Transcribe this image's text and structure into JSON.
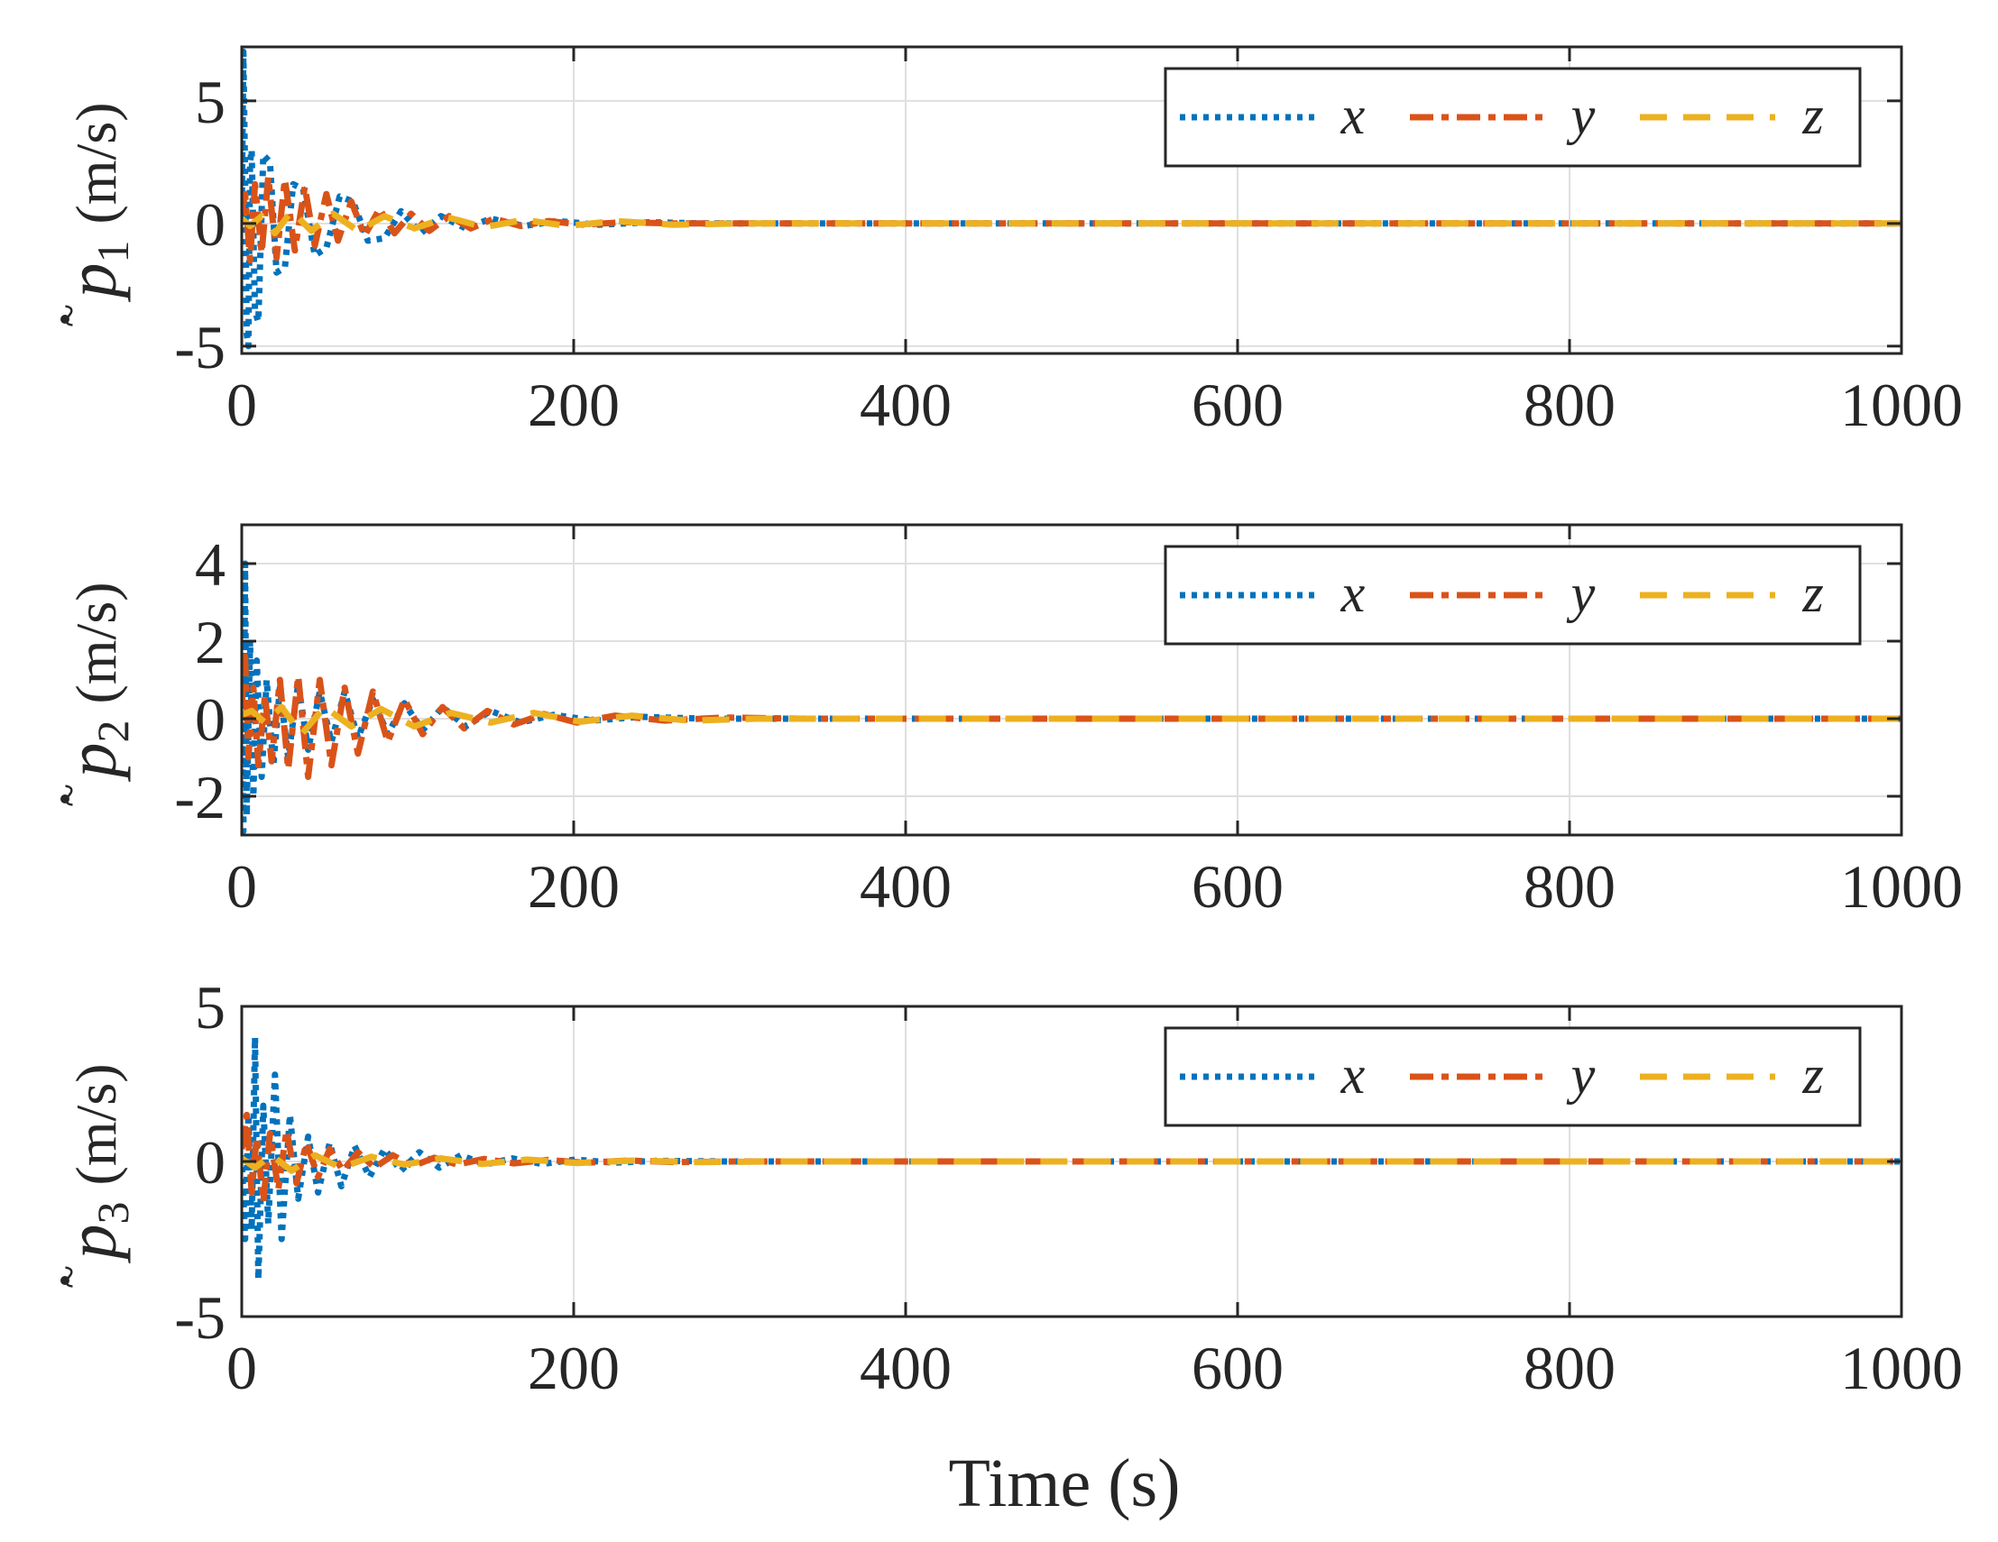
{
  "chart_data": [
    {
      "type": "line",
      "ylabel_symbol": "p",
      "ylabel_subscript": "1",
      "ylabel_unit": "(m/s)",
      "xlim": [
        0,
        1000
      ],
      "ylim": [
        -5.3,
        7.2
      ],
      "xticks": [
        0,
        200,
        400,
        600,
        800,
        1000
      ],
      "xtick_labels": [
        "0",
        "200",
        "400",
        "600",
        "800",
        "1000"
      ],
      "yticks": [
        -5,
        0,
        5
      ],
      "ytick_labels": [
        "-5",
        "0",
        "5"
      ],
      "grid": true,
      "legend_position": "top-right",
      "series": [
        {
          "name": "x",
          "color": "#0072BD",
          "style": "dotted",
          "x": [
            0,
            1,
            2,
            3,
            4,
            5,
            6,
            8,
            10,
            13,
            17,
            21,
            26,
            31,
            37,
            44,
            51,
            59,
            67,
            76,
            86,
            96,
            108,
            120,
            135,
            150,
            170,
            190,
            215,
            245,
            280,
            330,
            400,
            500,
            600,
            700,
            800,
            900,
            1000
          ],
          "y": [
            0.3,
            7.0,
            2.0,
            -4.5,
            -5.0,
            2.5,
            3.0,
            -3.6,
            -4.0,
            2.8,
            2.5,
            -2.0,
            -1.8,
            1.6,
            1.4,
            -1.3,
            -1.0,
            1.1,
            0.9,
            -0.7,
            -0.6,
            0.5,
            -0.4,
            0.3,
            -0.2,
            0.2,
            -0.1,
            0.1,
            -0.05,
            0.05,
            0,
            0,
            0,
            0,
            0,
            0,
            0,
            0,
            0
          ]
        },
        {
          "name": "y",
          "color": "#D95319",
          "style": "dash-dot",
          "x": [
            0,
            2,
            5,
            8,
            12,
            16,
            21,
            26,
            32,
            38,
            44,
            51,
            58,
            66,
            74,
            83,
            92,
            102,
            113,
            125,
            138,
            152,
            168,
            185,
            205,
            230,
            260,
            300,
            350,
            400,
            500,
            600,
            700,
            800,
            900,
            1000
          ],
          "y": [
            0.5,
            1.2,
            -1.5,
            1.6,
            -1.2,
            1.9,
            -1.4,
            1.8,
            -1.1,
            1.5,
            -0.9,
            1.2,
            -0.7,
            0.9,
            -0.5,
            0.6,
            -0.4,
            0.4,
            -0.3,
            0.3,
            -0.2,
            0.2,
            -0.1,
            0.1,
            -0.05,
            0.05,
            0,
            0,
            0,
            0,
            0,
            0,
            0,
            0,
            0,
            0
          ]
        },
        {
          "name": "z",
          "color": "#EDB120",
          "style": "dashed",
          "x": [
            0,
            5,
            12,
            20,
            30,
            42,
            55,
            70,
            86,
            104,
            124,
            146,
            170,
            196,
            225,
            260,
            300,
            400,
            500,
            600,
            700,
            800,
            900,
            1000
          ],
          "y": [
            0.2,
            -0.1,
            0.3,
            -0.4,
            0.5,
            -0.3,
            0.4,
            -0.3,
            0.3,
            -0.2,
            0.25,
            -0.15,
            0.15,
            -0.1,
            0.1,
            -0.05,
            0,
            0,
            0,
            0,
            0,
            0,
            0,
            0
          ]
        }
      ]
    },
    {
      "type": "line",
      "ylabel_symbol": "p",
      "ylabel_subscript": "2",
      "ylabel_unit": "(m/s)",
      "xlim": [
        0,
        1000
      ],
      "ylim": [
        -3,
        5
      ],
      "xticks": [
        0,
        200,
        400,
        600,
        800,
        1000
      ],
      "xtick_labels": [
        "0",
        "200",
        "400",
        "600",
        "800",
        "1000"
      ],
      "yticks": [
        -2,
        0,
        2,
        4
      ],
      "ytick_labels": [
        "-2",
        "0",
        "2",
        "4"
      ],
      "grid": true,
      "legend_position": "top-right",
      "series": [
        {
          "name": "x",
          "color": "#0072BD",
          "style": "dotted",
          "x": [
            0,
            1,
            2,
            3,
            5,
            7,
            9,
            12,
            15,
            19,
            23,
            28,
            34,
            40,
            47,
            54,
            62,
            70,
            79,
            88,
            98,
            109,
            121,
            135,
            150,
            168,
            188,
            212,
            240,
            280,
            330,
            400,
            500,
            600,
            700,
            800,
            900,
            1000
          ],
          "y": [
            0.2,
            -2.9,
            4.0,
            -2.5,
            2.0,
            -2.0,
            1.5,
            -1.5,
            1.0,
            -1.2,
            0.8,
            -1.0,
            0.9,
            -0.8,
            0.7,
            -0.6,
            0.7,
            -0.5,
            0.5,
            -0.4,
            0.4,
            -0.3,
            0.3,
            -0.2,
            0.2,
            -0.1,
            0.1,
            -0.05,
            0.05,
            0,
            0,
            0,
            0,
            0,
            0,
            0,
            0,
            0
          ]
        },
        {
          "name": "y",
          "color": "#D95319",
          "style": "dash-dot",
          "x": [
            0,
            2,
            4,
            7,
            10,
            14,
            18,
            23,
            28,
            34,
            40,
            47,
            54,
            62,
            70,
            79,
            88,
            98,
            109,
            121,
            134,
            148,
            164,
            182,
            202,
            225,
            255,
            290,
            340,
            400,
            500,
            600,
            700,
            800,
            900,
            1000
          ],
          "y": [
            0.3,
            1.6,
            -1.0,
            0.8,
            -1.2,
            0.6,
            -1.1,
            1.0,
            -1.3,
            1.1,
            -1.5,
            1.0,
            -1.2,
            0.8,
            -0.9,
            0.7,
            -0.6,
            0.5,
            -0.4,
            0.3,
            -0.25,
            0.2,
            -0.15,
            0.12,
            -0.1,
            0.08,
            -0.05,
            0.03,
            0,
            0,
            0,
            0,
            0,
            0,
            0,
            0
          ]
        },
        {
          "name": "z",
          "color": "#EDB120",
          "style": "dashed",
          "x": [
            0,
            6,
            14,
            24,
            36,
            50,
            66,
            84,
            104,
            126,
            150,
            176,
            204,
            235,
            270,
            310,
            400,
            500,
            600,
            700,
            800,
            900,
            1000
          ],
          "y": [
            0.1,
            0.2,
            -0.1,
            0.3,
            -0.4,
            0.3,
            -0.2,
            0.25,
            -0.2,
            0.15,
            -0.1,
            0.15,
            -0.08,
            0.08,
            -0.05,
            0,
            0,
            0,
            0,
            0,
            0,
            0,
            0
          ]
        }
      ]
    },
    {
      "type": "line",
      "ylabel_symbol": "p",
      "ylabel_subscript": "3",
      "ylabel_unit": "(m/s)",
      "xlim": [
        0,
        1000
      ],
      "ylim": [
        -5,
        5
      ],
      "xticks": [
        0,
        200,
        400,
        600,
        800,
        1000
      ],
      "xtick_labels": [
        "0",
        "200",
        "400",
        "600",
        "800",
        "1000"
      ],
      "yticks": [
        -5,
        0,
        5
      ],
      "ytick_labels": [
        "-5",
        "0",
        "5"
      ],
      "grid": true,
      "legend_position": "top-right",
      "series": [
        {
          "name": "x",
          "color": "#0072BD",
          "style": "dotted",
          "x": [
            0,
            2,
            4,
            6,
            8,
            10,
            13,
            16,
            20,
            24,
            29,
            34,
            40,
            46,
            53,
            60,
            68,
            77,
            86,
            96,
            107,
            119,
            132,
            147,
            163,
            181,
            201,
            224,
            250,
            290,
            340,
            400,
            500,
            600,
            700,
            800,
            900,
            1000
          ],
          "y": [
            0.2,
            -2.5,
            1.5,
            -2.2,
            4.0,
            -3.8,
            1.8,
            -2.0,
            2.8,
            -2.5,
            1.5,
            -1.2,
            0.8,
            -1.0,
            0.6,
            -0.8,
            0.5,
            -0.5,
            0.4,
            -0.3,
            0.3,
            -0.2,
            0.2,
            -0.1,
            0.1,
            -0.08,
            0.06,
            -0.04,
            0.02,
            0,
            0,
            0,
            0,
            0,
            0,
            0,
            0,
            0
          ]
        },
        {
          "name": "y",
          "color": "#D95319",
          "style": "dash-dot",
          "x": [
            0,
            3,
            6,
            9,
            13,
            17,
            22,
            27,
            33,
            39,
            46,
            53,
            61,
            70,
            80,
            91,
            103,
            116,
            130,
            146,
            164,
            184,
            207,
            233,
            262,
            300,
            350,
            400,
            500,
            600,
            700,
            800,
            900,
            1000
          ],
          "y": [
            0.4,
            1.5,
            -1.0,
            0.8,
            -1.3,
            0.9,
            -0.9,
            1.0,
            -0.7,
            0.6,
            -0.5,
            0.4,
            -0.3,
            0.3,
            -0.2,
            0.2,
            -0.15,
            0.12,
            -0.1,
            0.08,
            -0.06,
            0.05,
            -0.04,
            0.03,
            -0.02,
            0,
            0,
            0,
            0,
            0,
            0,
            0,
            0,
            0
          ]
        },
        {
          "name": "z",
          "color": "#EDB120",
          "style": "dashed",
          "x": [
            0,
            8,
            18,
            30,
            44,
            60,
            78,
            98,
            120,
            145,
            172,
            202,
            236,
            275,
            320,
            400,
            500,
            600,
            700,
            800,
            900,
            1000
          ],
          "y": [
            0.1,
            -0.2,
            0.2,
            -0.3,
            0.2,
            -0.2,
            0.15,
            -0.1,
            0.1,
            -0.08,
            0.06,
            -0.05,
            0.03,
            -0.02,
            0,
            0,
            0,
            0,
            0,
            0,
            0,
            0
          ]
        }
      ]
    }
  ],
  "shared_xlabel": "Time (s)"
}
